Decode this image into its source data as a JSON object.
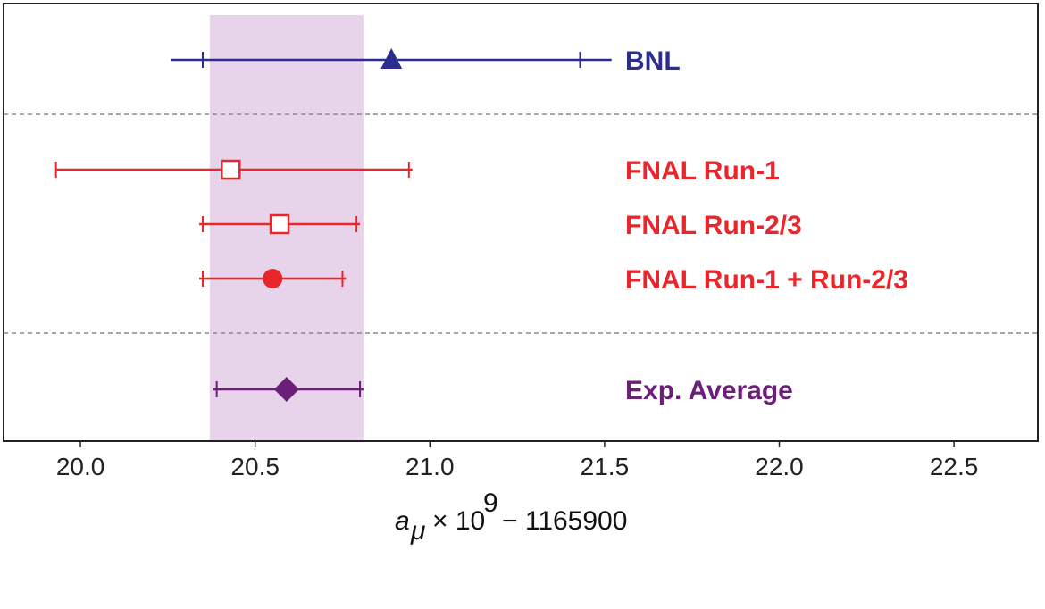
{
  "chart_data": {
    "type": "errorbar",
    "xlabel": {
      "symbol": "a",
      "subscript": "μ",
      "times": "× 10",
      "exponent": "9",
      "offset": "− 1165900"
    },
    "xlim": [
      19.78,
      22.74
    ],
    "xticks": [
      20.0,
      20.5,
      21.0,
      21.5,
      22.0,
      22.5
    ],
    "xtick_labels": [
      "20.0",
      "20.5",
      "21.0",
      "21.5",
      "22.0",
      "22.5"
    ],
    "band": {
      "x_low": 20.37,
      "x_high": 20.81,
      "color": "#e8d4ea"
    },
    "grid": false,
    "series": [
      {
        "name": "BNL",
        "value": 20.89,
        "stat_err": [
          20.35,
          21.43
        ],
        "total_err": [
          20.26,
          21.52
        ],
        "marker": "triangle-filled",
        "color": "#2b2e8c"
      },
      {
        "name": "FNAL Run-1",
        "value": 20.43,
        "stat_err": [
          19.93,
          20.94
        ],
        "total_err": [
          19.93,
          20.95
        ],
        "marker": "square-open",
        "color": "#e8272d"
      },
      {
        "name": "FNAL Run-2/3",
        "value": 20.57,
        "stat_err": [
          20.35,
          20.79
        ],
        "total_err": [
          20.34,
          20.8
        ],
        "marker": "square-open",
        "color": "#e8272d"
      },
      {
        "name": "FNAL Run-1 + Run-2/3",
        "value": 20.55,
        "stat_err": [
          20.35,
          20.75
        ],
        "total_err": [
          20.34,
          20.76
        ],
        "marker": "circle-filled",
        "color": "#e8272d"
      },
      {
        "name": "Exp. Average",
        "value": 20.59,
        "stat_err": [
          20.39,
          20.8
        ],
        "total_err": [
          20.38,
          20.81
        ],
        "marker": "diamond-filled",
        "color": "#6b1f78"
      }
    ],
    "group_separators": "dashed grey lines between BNL, FNAL and Exp. Average groups"
  }
}
